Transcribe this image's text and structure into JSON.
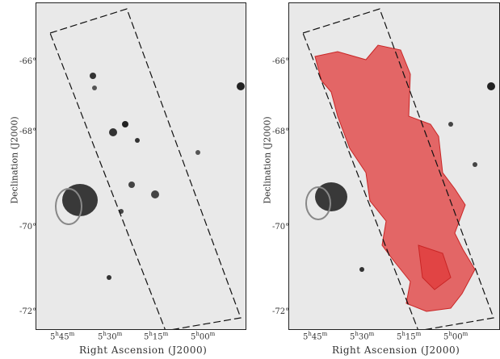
{
  "panels": [
    {
      "id": "left",
      "xlabel": "Right Ascension (J2000)",
      "ylabel": "Declination (J2000)",
      "x_ticks": [
        {
          "h": "5",
          "m": "45"
        },
        {
          "h": "5",
          "m": "30"
        },
        {
          "h": "5",
          "m": "15"
        },
        {
          "h": "5",
          "m": "00"
        }
      ],
      "y_ticks": [
        "-66°",
        "-68°",
        "-70°",
        "-72°"
      ]
    },
    {
      "id": "right",
      "xlabel": "Right Ascension (J2000)",
      "ylabel": "Declination (J2000)",
      "x_ticks": [
        {
          "h": "5",
          "m": "45"
        },
        {
          "h": "5",
          "m": "30"
        },
        {
          "h": "5",
          "m": "15"
        },
        {
          "h": "5",
          "m": "00"
        }
      ],
      "y_ticks": [
        "-66°",
        "-68°",
        "-70°",
        "-72°"
      ]
    }
  ],
  "colors": {
    "sky_background": "#e9e9e9",
    "survey_outline": "#111111",
    "overlay": "#e03a3a"
  }
}
